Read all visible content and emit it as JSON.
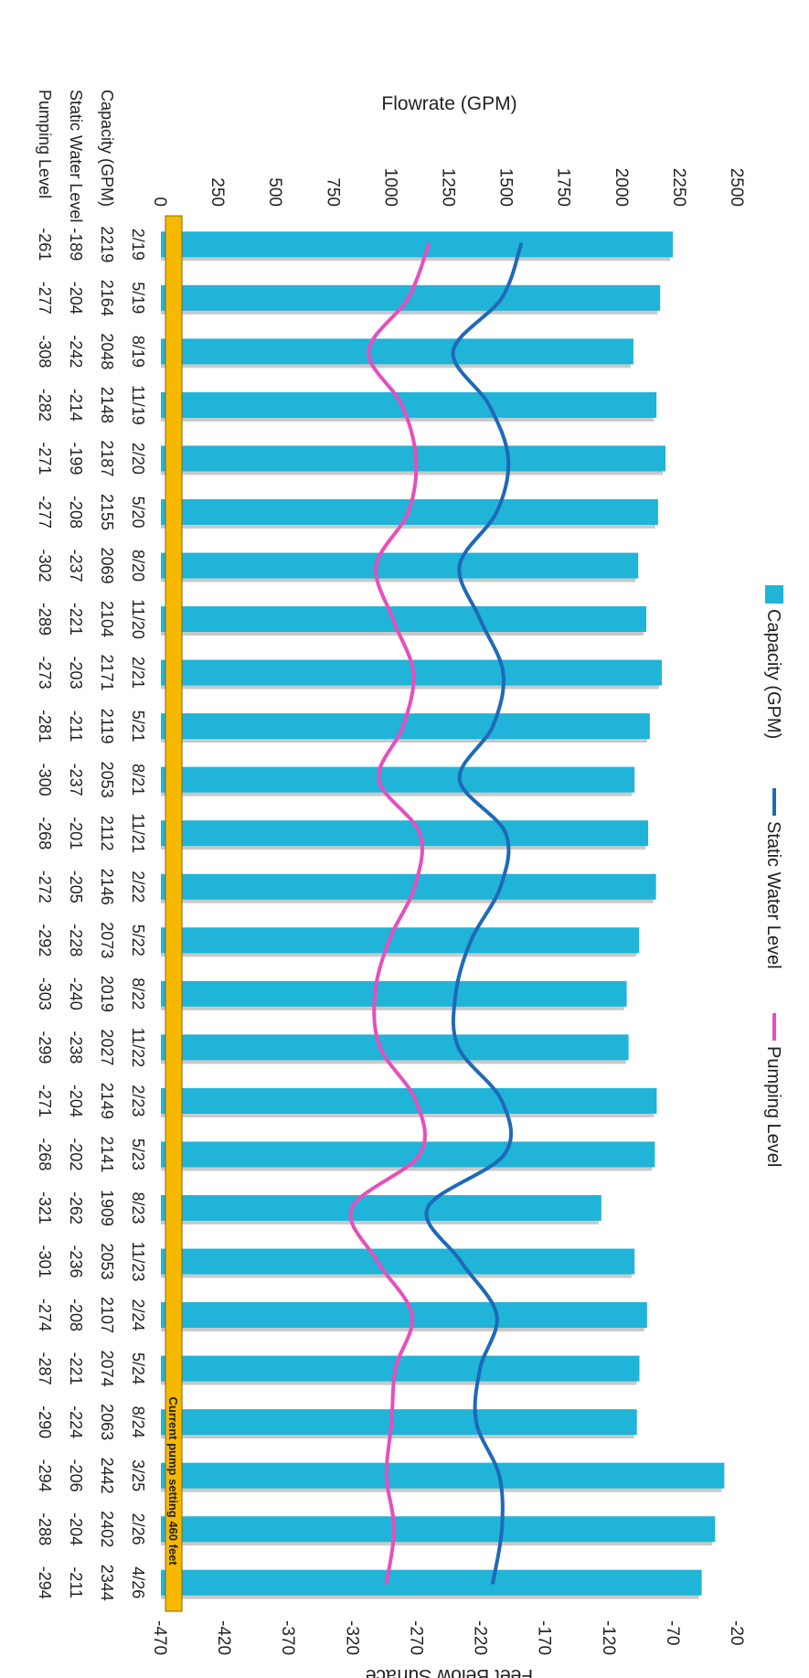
{
  "chart_data": {
    "type": "bar",
    "categories": [
      "2/19",
      "5/19",
      "8/19",
      "11/19",
      "2/20",
      "5/20",
      "8/20",
      "11/20",
      "2/21",
      "5/21",
      "8/21",
      "11/21",
      "2/22",
      "5/22",
      "8/22",
      "11/22",
      "2/23",
      "5/23",
      "8/23",
      "11/23",
      "2/24",
      "5/24",
      "8/24",
      "3/25",
      "2/26",
      "4/26"
    ],
    "series": [
      {
        "name": "Capacity (GPM)",
        "axis": "left",
        "type": "bar",
        "color": "#1fb4d8",
        "values": [
          2219,
          2164,
          2048,
          2148,
          2187,
          2155,
          2069,
          2104,
          2171,
          2119,
          2053,
          2112,
          2146,
          2073,
          2019,
          2027,
          2149,
          2141,
          1909,
          2053,
          2107,
          2074,
          2063,
          2442,
          2402,
          2344
        ]
      },
      {
        "name": "Static Water Level",
        "axis": "right",
        "type": "line",
        "color": "#1f69b8",
        "values": [
          -189,
          -204,
          -242,
          -214,
          -199,
          -208,
          -237,
          -221,
          -203,
          -211,
          -237,
          -201,
          -205,
          -228,
          -240,
          -238,
          -204,
          -202,
          -262,
          -236,
          -208,
          -221,
          -224,
          -206,
          -204,
          -211
        ]
      },
      {
        "name": "Pumping Level",
        "axis": "right",
        "type": "line",
        "color": "#e64fbc",
        "values": [
          -261,
          -277,
          -308,
          -282,
          -271,
          -277,
          -302,
          -289,
          -273,
          -281,
          -300,
          -268,
          -272,
          -292,
          -303,
          -299,
          -271,
          -268,
          -321,
          -301,
          -274,
          -287,
          -290,
          -294,
          -288,
          -294
        ]
      }
    ],
    "table": {
      "header": [
        "2/19",
        "5/19",
        "8/19",
        "11/19",
        "2/20",
        "5/20",
        "8/20",
        "11/20",
        "2/21",
        "5/21",
        "8/21",
        "11/21",
        "2/22",
        "5/22",
        "8/22",
        "11/22",
        "2/23",
        "5/23",
        "8/23",
        "11/23",
        "2/24",
        "5/24",
        "8/24",
        "3/25",
        "2/26",
        "4/26"
      ],
      "rows": [
        {
          "label": "Capacity (GPM)",
          "values": [
            "2219",
            "2164",
            "2048",
            "2148",
            "2187",
            "2155",
            "2069",
            "2104",
            "2171",
            "2119",
            "2053",
            "2112",
            "2146",
            "2073",
            "2019",
            "2027",
            "2149",
            "2141",
            "1909",
            "2053",
            "2107",
            "2074",
            "2063",
            "2442",
            "2402",
            "2344"
          ]
        },
        {
          "label": "Static Water Level",
          "values": [
            "-189",
            "-204",
            "-242",
            "-214",
            "-199",
            "-208",
            "-237",
            "-221",
            "-203",
            "-211",
            "-237",
            "-201",
            "-205",
            "-228",
            "-240",
            "-238",
            "-204",
            "-202",
            "-262",
            "-236",
            "-208",
            "-221",
            "-224",
            "-206",
            "-204",
            "-211"
          ]
        },
        {
          "label": "Pumping Level",
          "values": [
            "-261",
            "-277",
            "-308",
            "-282",
            "-271",
            "-277",
            "-302",
            "-289",
            "-273",
            "-281",
            "-300",
            "-268",
            "-272",
            "-292",
            "-303",
            "-299",
            "-271",
            "-268",
            "-321",
            "-301",
            "-274",
            "-287",
            "-290",
            "-294",
            "-288",
            "-294"
          ]
        }
      ]
    },
    "ylabel": "Flowrate (GPM)",
    "ylim": [
      0,
      2500
    ],
    "yticks": [
      0,
      250,
      500,
      750,
      1000,
      1250,
      1500,
      1750,
      2000,
      2250,
      2500
    ],
    "y2label": "Feet Below Surface",
    "y2lim": [
      -470,
      -20
    ],
    "y2ticks": [
      -20,
      -70,
      -120,
      -170,
      -220,
      -270,
      -320,
      -370,
      -420,
      -470
    ],
    "legend": {
      "placement": "top",
      "entries": [
        "Capacity (GPM)",
        "Static Water Level",
        "Pumping Level"
      ]
    },
    "pump_setting": {
      "value": -460,
      "label": "Current pump setting 460 feet",
      "color": "#f7b800"
    },
    "grid": false
  }
}
